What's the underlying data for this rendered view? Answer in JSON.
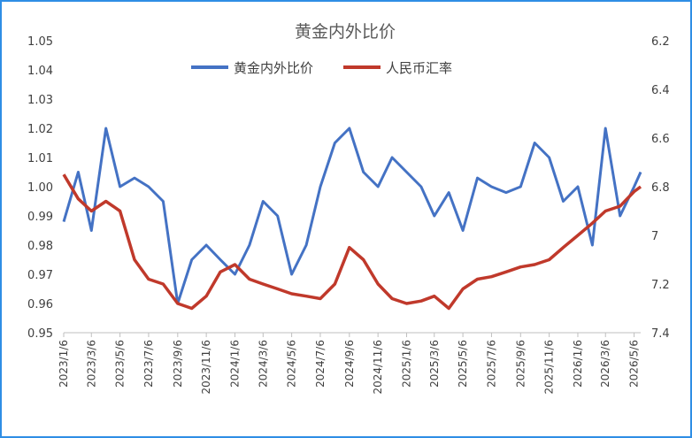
{
  "chart_data": {
    "type": "line",
    "title": "黄金内外比价",
    "legend_position": "top",
    "grid": false,
    "x_tick_labels": [
      "2023/1/6",
      "2023/3/6",
      "2023/5/6",
      "2023/7/6",
      "2023/9/6",
      "2023/11/6",
      "2024/1/6",
      "2024/3/6",
      "2024/5/6",
      "2024/7/6",
      "2024/9/6",
      "2024/11/6",
      "2025/1/6",
      "2025/3/6",
      "2025/5/6",
      "2025/7/6",
      "2025/9/6",
      "2025/11/6",
      "2026/1/6",
      "2026/3/6",
      "2026/5/6"
    ],
    "y_left": {
      "min": 0.95,
      "max": 1.05,
      "ticks": [
        "0.95",
        "0.96",
        "0.97",
        "0.98",
        "0.99",
        "1.00",
        "1.01",
        "1.02",
        "1.03",
        "1.04",
        "1.05"
      ]
    },
    "y_right": {
      "min": 6.2,
      "max": 7.4,
      "inverted": true,
      "ticks": [
        "6.2",
        "6.4",
        "6.6",
        "6.8",
        "7",
        "7.2",
        "7.4"
      ]
    },
    "series": [
      {
        "name": "黄金内外比价",
        "color": "#4472c4",
        "axis": "left",
        "x": [
          "2023/1/6",
          "2023/2/6",
          "2023/3/6",
          "2023/4/6",
          "2023/5/6",
          "2023/6/6",
          "2023/7/6",
          "2023/8/6",
          "2023/9/6",
          "2023/10/6",
          "2023/11/6",
          "2023/12/6",
          "2024/1/6",
          "2024/2/6",
          "2024/3/6",
          "2024/4/6",
          "2024/5/6",
          "2024/6/6",
          "2024/7/6",
          "2024/8/6",
          "2024/9/6",
          "2024/10/6",
          "2024/11/6",
          "2024/12/6",
          "2025/1/6",
          "2025/2/6",
          "2025/3/6",
          "2025/4/6",
          "2025/5/6",
          "2025/6/6",
          "2025/7/6",
          "2025/8/6",
          "2025/9/6",
          "2025/10/6",
          "2025/11/6",
          "2025/12/6",
          "2026/1/6",
          "2026/2/6",
          "2026/3/6",
          "2026/4/6",
          "2026/5/6",
          "2026/5/20"
        ],
        "values": [
          0.988,
          1.005,
          0.985,
          1.02,
          1.0,
          1.003,
          1.0,
          0.995,
          0.96,
          0.975,
          0.98,
          0.975,
          0.97,
          0.98,
          0.995,
          0.99,
          0.97,
          0.98,
          1.0,
          1.015,
          1.02,
          1.005,
          1.0,
          1.01,
          1.005,
          1.0,
          0.99,
          0.998,
          0.985,
          1.003,
          1.0,
          0.998,
          1.0,
          1.015,
          1.01,
          0.995,
          1.0,
          0.98,
          1.02,
          0.99,
          1.0,
          1.005
        ]
      },
      {
        "name": "人民币汇率",
        "color": "#c0392b",
        "axis": "right",
        "x": [
          "2023/1/6",
          "2023/2/6",
          "2023/3/6",
          "2023/4/6",
          "2023/5/6",
          "2023/6/6",
          "2023/7/6",
          "2023/8/6",
          "2023/9/6",
          "2023/10/6",
          "2023/11/6",
          "2023/12/6",
          "2024/1/6",
          "2024/2/6",
          "2024/3/6",
          "2024/4/6",
          "2024/5/6",
          "2024/6/6",
          "2024/7/6",
          "2024/8/6",
          "2024/9/6",
          "2024/10/6",
          "2024/11/6",
          "2024/12/6",
          "2025/1/6",
          "2025/2/6",
          "2025/3/6",
          "2025/4/6",
          "2025/5/6",
          "2025/6/6",
          "2025/7/6",
          "2025/8/6",
          "2025/9/6",
          "2025/10/6",
          "2025/11/6",
          "2025/12/6",
          "2026/1/6",
          "2026/2/6",
          "2026/3/6",
          "2026/4/6",
          "2026/5/6",
          "2026/5/20"
        ],
        "values": [
          6.75,
          6.85,
          6.9,
          6.86,
          6.9,
          7.1,
          7.18,
          7.2,
          7.28,
          7.3,
          7.25,
          7.15,
          7.12,
          7.18,
          7.2,
          7.22,
          7.24,
          7.25,
          7.26,
          7.2,
          7.05,
          7.1,
          7.2,
          7.26,
          7.28,
          7.27,
          7.25,
          7.3,
          7.22,
          7.18,
          7.17,
          7.15,
          7.13,
          7.12,
          7.1,
          7.05,
          7.0,
          6.95,
          6.9,
          6.88,
          6.82,
          6.8
        ]
      }
    ]
  }
}
